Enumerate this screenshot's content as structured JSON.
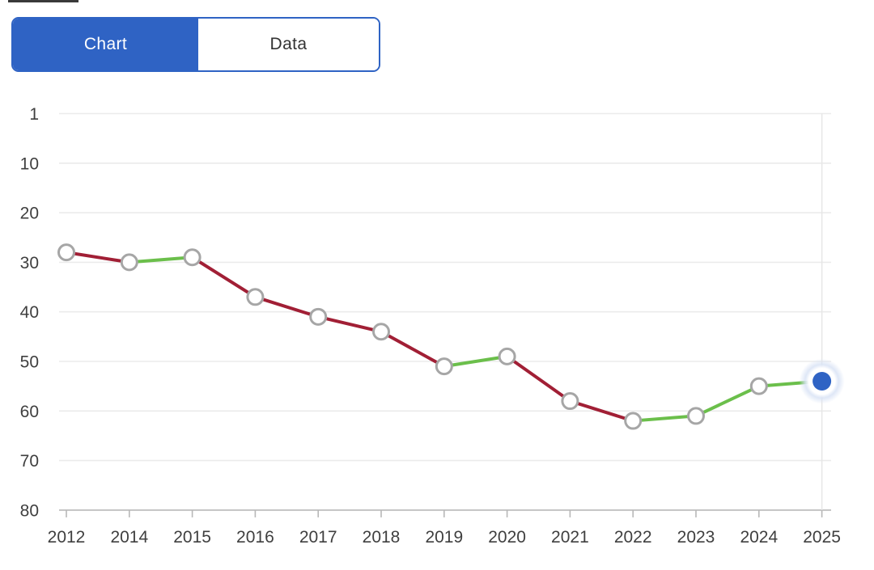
{
  "toggle": {
    "chart_label": "Chart",
    "data_label": "Data",
    "selected": "Chart"
  },
  "colors": {
    "accent_blue": "#2f63c4",
    "worsening_red": "#a11f35",
    "improving_green": "#6bbf4b",
    "marker_stroke": "#a6a6a6",
    "marker_fill": "#ffffff",
    "gridline": "#ebebeb",
    "axis_line": "#b8b8b8",
    "label_text": "#3f3f3f",
    "selection_glow": "#d9e3f5",
    "crosshair_line": "#e6e6e6"
  },
  "chart_data": {
    "type": "line",
    "title": "",
    "xlabel": "",
    "ylabel": "",
    "categories": [
      "2012",
      "2014",
      "2015",
      "2016",
      "2017",
      "2018",
      "2019",
      "2020",
      "2021",
      "2022",
      "2023",
      "2024",
      "2025"
    ],
    "values": [
      28,
      30,
      29,
      37,
      41,
      44,
      51,
      49,
      58,
      62,
      61,
      55,
      54
    ],
    "y_ticks": [
      1,
      10,
      20,
      30,
      40,
      50,
      60,
      70,
      80
    ],
    "y_axis_inverted": true,
    "ylim": [
      1,
      80
    ],
    "grid": true,
    "legend": false,
    "series_rule": "segment colored green when rank improves (number decreases), red when rank worsens (number increases)",
    "selected_point": {
      "category": "2025",
      "value": 54
    }
  }
}
